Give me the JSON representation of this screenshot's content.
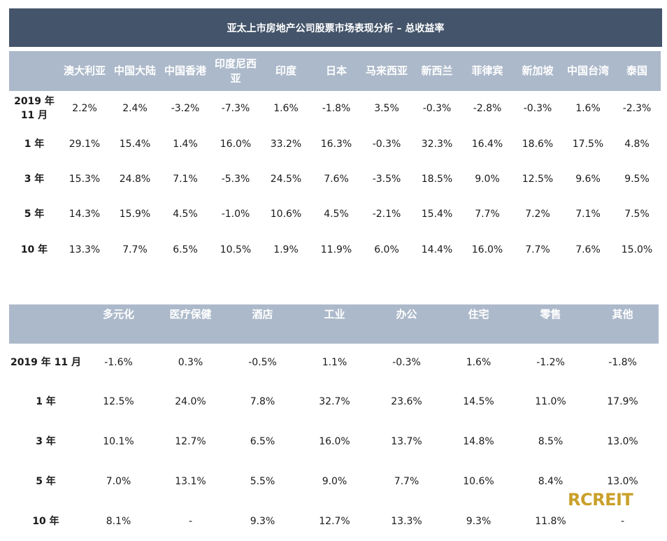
{
  "title": "亚太上市房地产公司股票市场表现分析 – 总收益率",
  "table1": {
    "headers": [
      "澳大利亚",
      "中国大陆",
      "中国香港",
      "印度尼西亚",
      "印度",
      "日本",
      "马来西亚",
      "新西兰",
      "菲律宾",
      "新加坡",
      "中国台湾",
      "泰国"
    ],
    "rows": [
      {
        "label": "2019 年 11 月",
        "values": [
          "2.2%",
          "2.4%",
          "-3.2%",
          "-7.3%",
          "1.6%",
          "-1.8%",
          "3.5%",
          "-0.3%",
          "-2.8%",
          "-0.3%",
          "1.6%",
          "-2.3%"
        ]
      },
      {
        "label": "1 年",
        "values": [
          "29.1%",
          "15.4%",
          "1.4%",
          "16.0%",
          "33.2%",
          "16.3%",
          "-0.3%",
          "32.3%",
          "16.4%",
          "18.6%",
          "17.5%",
          "4.8%"
        ]
      },
      {
        "label": "3 年",
        "values": [
          "15.3%",
          "24.8%",
          "7.1%",
          "-5.3%",
          "24.5%",
          "7.6%",
          "-3.5%",
          "18.5%",
          "9.0%",
          "12.5%",
          "9.6%",
          "9.5%"
        ]
      },
      {
        "label": "5 年",
        "values": [
          "14.3%",
          "15.9%",
          "4.5%",
          "-1.0%",
          "10.6%",
          "4.5%",
          "-2.1%",
          "15.4%",
          "7.7%",
          "7.2%",
          "7.1%",
          "7.5%"
        ]
      },
      {
        "label": "10 年",
        "values": [
          "13.3%",
          "7.7%",
          "6.5%",
          "10.5%",
          "1.9%",
          "11.9%",
          "6.0%",
          "14.4%",
          "16.0%",
          "7.7%",
          "7.6%",
          "15.0%"
        ]
      }
    ]
  },
  "table2": {
    "headers": [
      "多元化",
      "医疗保健",
      "酒店",
      "工业",
      "办公",
      "住宅",
      "零售",
      "其他"
    ],
    "rows": [
      {
        "label": "2019 年 11 月",
        "values": [
          "-1.6%",
          "0.3%",
          "-0.5%",
          "1.1%",
          "-0.3%",
          "1.6%",
          "-1.2%",
          "-1.8%"
        ]
      },
      {
        "label": "1 年",
        "values": [
          "12.5%",
          "24.0%",
          "7.8%",
          "32.7%",
          "23.6%",
          "14.5%",
          "11.0%",
          "17.9%"
        ]
      },
      {
        "label": "3 年",
        "values": [
          "10.1%",
          "12.7%",
          "6.5%",
          "16.0%",
          "13.7%",
          "14.8%",
          "8.5%",
          "13.0%"
        ]
      },
      {
        "label": "5 年",
        "values": [
          "7.0%",
          "13.1%",
          "5.5%",
          "9.0%",
          "7.7%",
          "10.6%",
          "8.4%",
          "13.0%"
        ]
      },
      {
        "label": "10 年",
        "values": [
          "8.1%",
          "-",
          "9.3%",
          "12.7%",
          "13.3%",
          "9.3%",
          "11.8%",
          "-"
        ]
      }
    ]
  },
  "logo_text": "RCREIT"
}
